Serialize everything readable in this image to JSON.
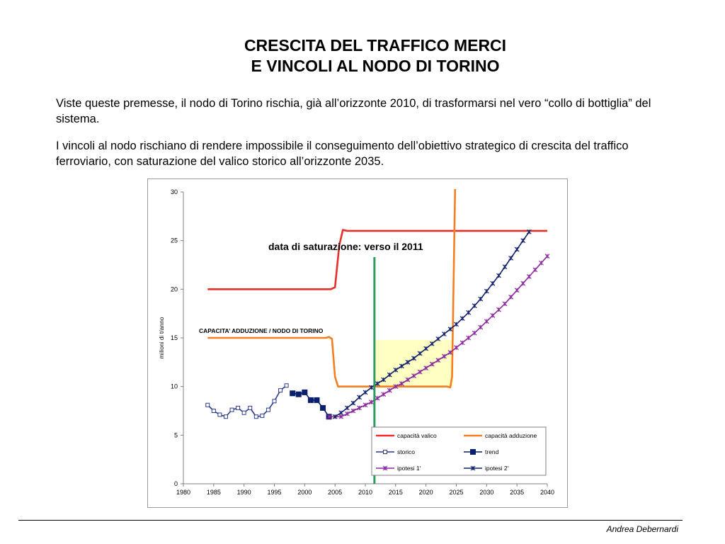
{
  "slide": {
    "title_line1": "CRESCITA DEL TRAFFICO MERCI",
    "title_line2": "E VINCOLI AL NODO DI TORINO",
    "paragraph1": "Viste queste premesse, il nodo di Torino rischia, già all’orizzonte 2010, di trasformarsi nel vero “collo di bottiglia” del sistema.",
    "paragraph2": "I vincoli al nodo rischiano di rendere impossibile il conseguimento dell’obiettivo strategico di crescita del traffico ferroviario, con saturazione del valico storico all’orizzonte 2035.",
    "author": "Andrea Debernardi"
  },
  "chart_data": {
    "type": "line",
    "ylabel": "milioni di t/anno",
    "xlim": [
      1980,
      2040
    ],
    "ylim": [
      0,
      30
    ],
    "x_ticks": [
      1980,
      1985,
      1990,
      1995,
      2000,
      2005,
      2010,
      2015,
      2020,
      2025,
      2030,
      2035,
      2040
    ],
    "y_ticks": [
      0,
      5,
      10,
      15,
      20,
      25,
      30
    ],
    "grid": false,
    "legend_position": "bottom-right",
    "annotations": {
      "saturation": "data di saturazione: verso il 2011",
      "capacity_label": "CAPACITA’ ADDUZIONE / NODO DI TORINO",
      "saturation_year": 2011.5,
      "shaded_region": {
        "x": [
          2011.5,
          2024.5
        ],
        "y": [
          10,
          14.8
        ]
      }
    },
    "series": [
      {
        "name": "capacità valico",
        "color": "#e8302a",
        "marker": "none",
        "points": [
          [
            1984,
            20
          ],
          [
            2004.3,
            20
          ],
          [
            2005,
            20.2
          ],
          [
            2005.7,
            24.5
          ],
          [
            2006.3,
            26.1
          ],
          [
            2007,
            26
          ],
          [
            2040,
            26
          ]
        ]
      },
      {
        "name": "capacità adduzione",
        "color": "#f47e20",
        "marker": "none",
        "points": [
          [
            1984,
            15
          ],
          [
            2003.5,
            15
          ],
          [
            2004,
            15.1
          ],
          [
            2004.5,
            14.9
          ],
          [
            2005,
            11
          ],
          [
            2005.5,
            10
          ],
          [
            2023.5,
            10
          ],
          [
            2024,
            9.9
          ],
          [
            2024.3,
            11
          ],
          [
            2024.8,
            30.3
          ]
        ]
      },
      {
        "name": "storico",
        "color": "#2a3a8f",
        "marker": "square-open",
        "points": [
          [
            1984,
            8.1
          ],
          [
            1985,
            7.5
          ],
          [
            1986,
            7.1
          ],
          [
            1987,
            6.9
          ],
          [
            1988,
            7.6
          ],
          [
            1989,
            7.8
          ],
          [
            1990,
            7.3
          ],
          [
            1991,
            7.8
          ],
          [
            1992,
            6.9
          ],
          [
            1993,
            7.0
          ],
          [
            1994,
            7.6
          ],
          [
            1995,
            8.5
          ],
          [
            1996,
            9.6
          ],
          [
            1997,
            10.1
          ]
        ]
      },
      {
        "name": "trend",
        "color": "#0a1f6e",
        "marker": "square-filled",
        "points": [
          [
            1998,
            9.3
          ],
          [
            1999,
            9.2
          ],
          [
            2000,
            9.4
          ],
          [
            2001,
            8.6
          ],
          [
            2002,
            8.6
          ],
          [
            2003,
            7.8
          ],
          [
            2004,
            6.9
          ]
        ]
      },
      {
        "name": "ipotesi 1'",
        "color": "#8b2a9e",
        "marker": "star",
        "points": [
          [
            2004,
            6.9
          ],
          [
            2005,
            6.9
          ],
          [
            2006,
            6.9
          ],
          [
            2007,
            7.2
          ],
          [
            2008,
            7.5
          ],
          [
            2009,
            7.8
          ],
          [
            2010,
            8.1
          ],
          [
            2011,
            8.4
          ],
          [
            2012,
            8.8
          ],
          [
            2013,
            9.2
          ],
          [
            2014,
            9.6
          ],
          [
            2015,
            10.0
          ],
          [
            2016,
            10.3
          ],
          [
            2017,
            10.7
          ],
          [
            2018,
            11.1
          ],
          [
            2019,
            11.5
          ],
          [
            2020,
            11.9
          ],
          [
            2021,
            12.3
          ],
          [
            2022,
            12.7
          ],
          [
            2023,
            13.1
          ],
          [
            2024,
            13.5
          ],
          [
            2025,
            14.0
          ],
          [
            2026,
            14.5
          ],
          [
            2027,
            15.0
          ],
          [
            2028,
            15.5
          ],
          [
            2029,
            16.1
          ],
          [
            2030,
            16.7
          ],
          [
            2031,
            17.3
          ],
          [
            2032,
            17.9
          ],
          [
            2033,
            18.5
          ],
          [
            2034,
            19.2
          ],
          [
            2035,
            19.9
          ],
          [
            2036,
            20.6
          ],
          [
            2037,
            21.3
          ],
          [
            2038,
            22.0
          ],
          [
            2039,
            22.7
          ],
          [
            2040,
            23.4
          ]
        ]
      },
      {
        "name": "ipotesi 2'",
        "color": "#13206e",
        "marker": "star",
        "points": [
          [
            2005,
            6.9
          ],
          [
            2006,
            7.3
          ],
          [
            2007,
            7.8
          ],
          [
            2008,
            8.3
          ],
          [
            2009,
            8.9
          ],
          [
            2010,
            9.4
          ],
          [
            2011,
            9.9
          ],
          [
            2012,
            10.3
          ],
          [
            2013,
            10.7
          ],
          [
            2014,
            11.2
          ],
          [
            2015,
            11.7
          ],
          [
            2016,
            12.1
          ],
          [
            2017,
            12.5
          ],
          [
            2018,
            12.9
          ],
          [
            2019,
            13.4
          ],
          [
            2020,
            13.9
          ],
          [
            2021,
            14.4
          ],
          [
            2022,
            14.9
          ],
          [
            2023,
            15.4
          ],
          [
            2024,
            15.9
          ],
          [
            2025,
            16.4
          ],
          [
            2026,
            17.0
          ],
          [
            2027,
            17.6
          ],
          [
            2028,
            18.3
          ],
          [
            2029,
            19.0
          ],
          [
            2030,
            19.8
          ],
          [
            2031,
            20.6
          ],
          [
            2032,
            21.4
          ],
          [
            2033,
            22.3
          ],
          [
            2034,
            23.2
          ],
          [
            2035,
            24.1
          ],
          [
            2036,
            25.0
          ],
          [
            2037,
            25.9
          ]
        ]
      }
    ]
  }
}
